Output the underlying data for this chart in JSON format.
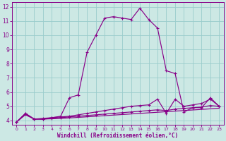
{
  "xlabel": "Windchill (Refroidissement éolien,°C)",
  "bg_color": "#cce8e4",
  "grid_color": "#99cccc",
  "line_color": "#880088",
  "xlim": [
    -0.5,
    23.5
  ],
  "ylim": [
    3.7,
    12.3
  ],
  "xticks": [
    0,
    1,
    2,
    3,
    4,
    5,
    6,
    7,
    8,
    9,
    10,
    11,
    12,
    13,
    14,
    15,
    16,
    17,
    18,
    19,
    20,
    21,
    22,
    23
  ],
  "yticks": [
    4,
    5,
    6,
    7,
    8,
    9,
    10,
    11,
    12
  ],
  "line1_x": [
    0,
    1,
    2,
    3,
    4,
    5,
    6,
    7,
    8,
    9,
    10,
    11,
    12,
    13,
    14,
    15,
    16,
    17,
    18,
    19,
    20,
    21,
    22,
    23
  ],
  "line1_y": [
    3.9,
    4.5,
    4.1,
    4.1,
    4.2,
    4.3,
    5.6,
    5.8,
    8.8,
    10.0,
    11.2,
    11.3,
    11.2,
    11.1,
    11.9,
    11.1,
    10.5,
    7.5,
    7.3,
    4.6,
    4.9,
    4.9,
    5.6,
    5.0
  ],
  "line2_x": [
    0,
    1,
    2,
    3,
    4,
    5,
    6,
    7,
    8,
    9,
    10,
    11,
    12,
    13,
    14,
    15,
    16,
    17,
    18,
    19,
    20,
    21,
    22,
    23
  ],
  "line2_y": [
    3.9,
    4.5,
    4.1,
    4.15,
    4.2,
    4.25,
    4.3,
    4.4,
    4.5,
    4.6,
    4.7,
    4.8,
    4.9,
    5.0,
    5.05,
    5.1,
    5.5,
    4.5,
    5.5,
    5.0,
    5.1,
    5.2,
    5.5,
    5.0
  ],
  "line3_x": [
    0,
    1,
    2,
    3,
    4,
    5,
    6,
    7,
    8,
    9,
    10,
    11,
    12,
    13,
    14,
    15,
    16,
    17,
    18,
    19,
    20,
    21,
    22,
    23
  ],
  "line3_y": [
    3.9,
    4.45,
    4.1,
    4.1,
    4.15,
    4.2,
    4.25,
    4.3,
    4.35,
    4.4,
    4.45,
    4.5,
    4.55,
    4.6,
    4.65,
    4.7,
    4.75,
    4.7,
    4.8,
    4.85,
    4.9,
    4.95,
    5.05,
    5.0
  ],
  "line4_x": [
    0,
    1,
    2,
    3,
    4,
    5,
    6,
    7,
    8,
    9,
    10,
    11,
    12,
    13,
    14,
    15,
    16,
    17,
    18,
    19,
    20,
    21,
    22,
    23
  ],
  "line4_y": [
    3.9,
    4.4,
    4.1,
    4.1,
    4.12,
    4.15,
    4.18,
    4.22,
    4.26,
    4.3,
    4.34,
    4.38,
    4.42,
    4.46,
    4.5,
    4.54,
    4.58,
    4.62,
    4.66,
    4.7,
    4.74,
    4.78,
    4.82,
    4.86
  ]
}
